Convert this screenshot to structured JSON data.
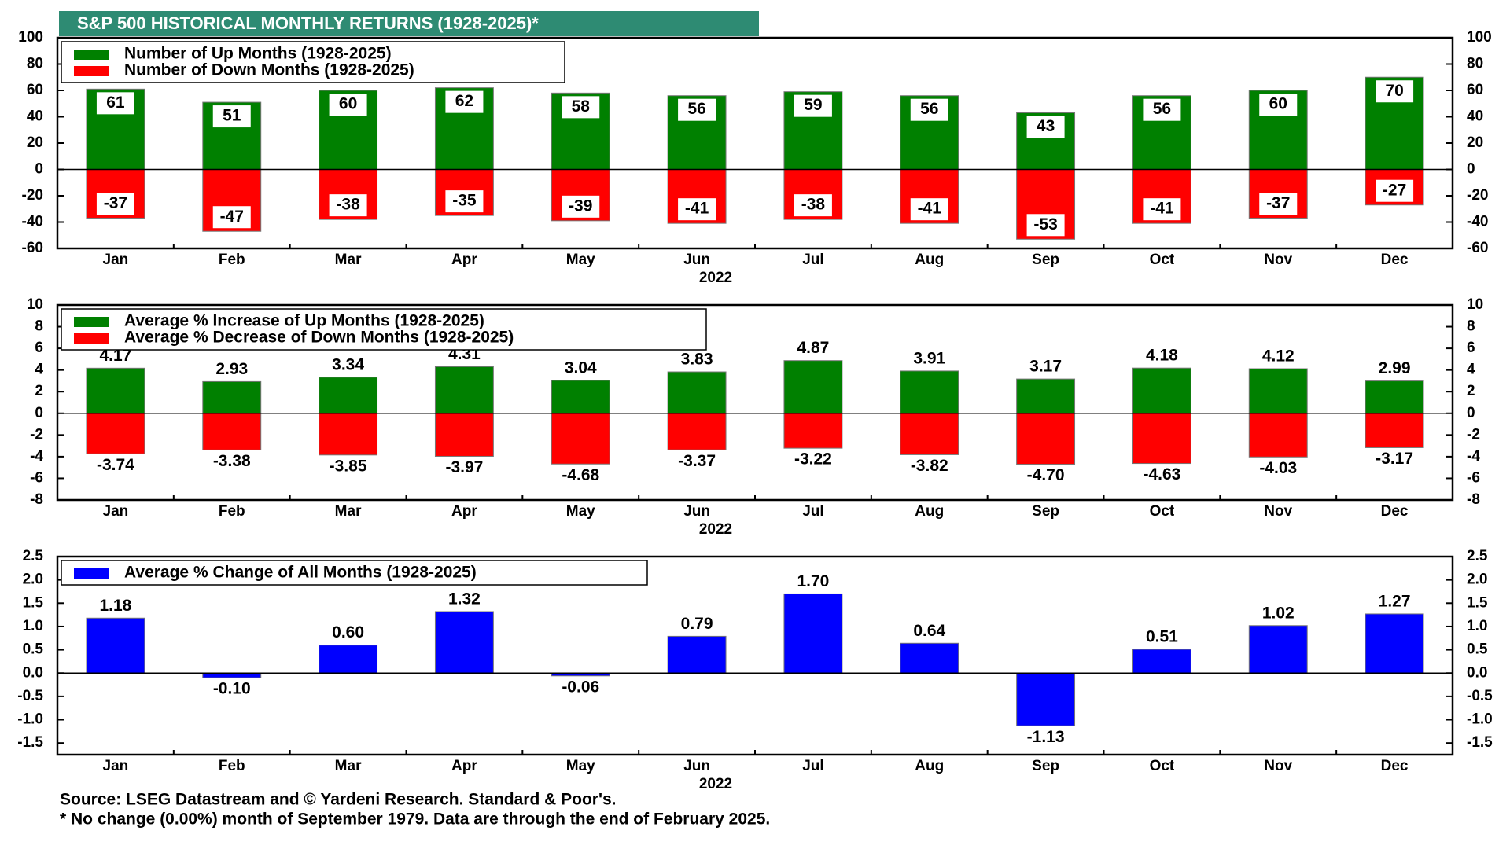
{
  "header": {
    "title": "S&P 500 HISTORICAL MONTHLY RETURNS (1928-2025)*"
  },
  "chart_data": [
    {
      "type": "bar",
      "xlabel": "2022",
      "categories": [
        "Jan",
        "Feb",
        "Mar",
        "Apr",
        "May",
        "Jun",
        "Jul",
        "Aug",
        "Sep",
        "Oct",
        "Nov",
        "Dec"
      ],
      "series": [
        {
          "name": "Number of Up Months (1928-2025)",
          "color": "#008000",
          "values": [
            61,
            51,
            60,
            62,
            58,
            56,
            59,
            56,
            43,
            56,
            60,
            70
          ]
        },
        {
          "name": "Number of Down Months (1928-2025)",
          "color": "#ff0000",
          "values": [
            -37,
            -47,
            -38,
            -35,
            -39,
            -41,
            -38,
            -41,
            -53,
            -41,
            -37,
            -27
          ]
        }
      ],
      "ylim": [
        -60,
        100
      ],
      "yticks": [
        -60,
        -40,
        -20,
        0,
        20,
        40,
        60,
        80,
        100
      ]
    },
    {
      "type": "bar",
      "xlabel": "2022",
      "categories": [
        "Jan",
        "Feb",
        "Mar",
        "Apr",
        "May",
        "Jun",
        "Jul",
        "Aug",
        "Sep",
        "Oct",
        "Nov",
        "Dec"
      ],
      "series": [
        {
          "name": "Average % Increase of Up Months (1928-2025)",
          "color": "#008000",
          "values": [
            4.17,
            2.93,
            3.34,
            4.31,
            3.04,
            3.83,
            4.87,
            3.91,
            3.17,
            4.18,
            4.12,
            2.99
          ],
          "value_labels": [
            "4.17",
            "2.93",
            "3.34",
            "4.31",
            "3.04",
            "3.83",
            "4.87",
            "3.91",
            "3.17",
            "4.18",
            "4.12",
            "2.99"
          ]
        },
        {
          "name": "Average % Decrease of Down Months (1928-2025)",
          "color": "#ff0000",
          "values": [
            -3.74,
            -3.38,
            -3.85,
            -3.97,
            -4.68,
            -3.37,
            -3.22,
            -3.82,
            -4.7,
            -4.63,
            -4.03,
            -3.17
          ],
          "value_labels": [
            "-3.74",
            "-3.38",
            "-3.85",
            "-3.97",
            "-4.68",
            "-3.37",
            "-3.22",
            "-3.82",
            "-4.70",
            "-4.63",
            "-4.03",
            "-3.17"
          ]
        }
      ],
      "ylim": [
        -8,
        10
      ],
      "yticks": [
        -8,
        -6,
        -4,
        -2,
        0,
        2,
        4,
        6,
        8,
        10
      ]
    },
    {
      "type": "bar",
      "xlabel": "2022",
      "categories": [
        "Jan",
        "Feb",
        "Mar",
        "Apr",
        "May",
        "Jun",
        "Jul",
        "Aug",
        "Sep",
        "Oct",
        "Nov",
        "Dec"
      ],
      "series": [
        {
          "name": "Average % Change of All Months (1928-2025)",
          "color": "#0000ff",
          "values": [
            1.18,
            -0.1,
            0.6,
            1.32,
            -0.06,
            0.79,
            1.7,
            0.64,
            -1.13,
            0.51,
            1.02,
            1.27
          ],
          "value_labels": [
            "1.18",
            "-0.10",
            "0.60",
            "1.32",
            "-0.06",
            "0.79",
            "1.70",
            "0.64",
            "-1.13",
            "0.51",
            "1.02",
            "1.27"
          ]
        }
      ],
      "ylim": [
        -1.75,
        2.5
      ],
      "yticks": [
        {
          "value": -1.5,
          "label": "-1.5"
        },
        {
          "value": -1,
          "label": "-1.0"
        },
        {
          "value": -0.5,
          "label": "-0.5"
        },
        {
          "value": 0,
          "label": "0.0"
        },
        {
          "value": 0.5,
          "label": "0.5"
        },
        {
          "value": 1,
          "label": "1.0"
        },
        {
          "value": 1.5,
          "label": "1.5"
        },
        {
          "value": 2,
          "label": "2.0"
        },
        {
          "value": 2.5,
          "label": "2.5"
        }
      ]
    }
  ],
  "footer": {
    "source": "Source: LSEG Datastream and © Yardeni Research. Standard & Poor's.",
    "note": "* No change (0.00%) month of September 1979. Data are through the end of February 2025."
  }
}
